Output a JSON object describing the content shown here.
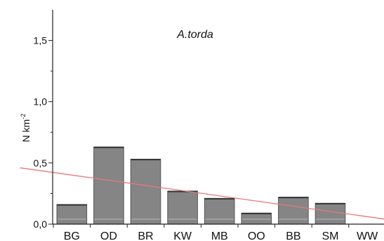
{
  "chart_data": {
    "type": "bar",
    "title": "A.torda",
    "xlabel": "",
    "ylabel": "N km",
    "ylabel_superscript": "-2",
    "categories": [
      "BG",
      "OD",
      "BR",
      "KW",
      "MB",
      "OO",
      "BB",
      "SM",
      "WW"
    ],
    "values": [
      0.16,
      0.63,
      0.53,
      0.27,
      0.21,
      0.09,
      0.22,
      0.17,
      0.0
    ],
    "ylim": [
      0,
      1.75
    ],
    "yticks": [
      0.0,
      0.5,
      1.0,
      1.5
    ],
    "ytick_labels": [
      "0,0",
      "0,5",
      "1,0",
      "1,5"
    ],
    "trendline": {
      "x_start": 0.5,
      "y_start": 0.46,
      "x_end": 9.45,
      "y_end": 0.04
    },
    "grid": false,
    "legend": "none",
    "colors": {
      "bar_fill": "#858585",
      "bar_edge": "#333333",
      "trend": "#e87878",
      "axis": "#222222"
    }
  }
}
